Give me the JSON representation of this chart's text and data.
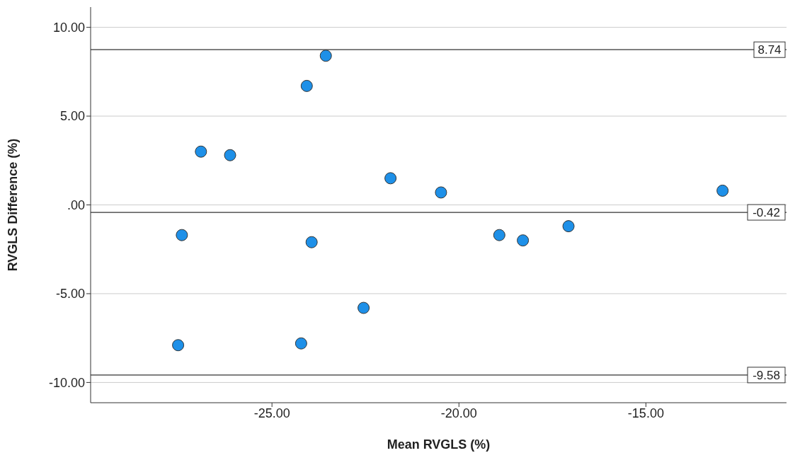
{
  "chart_data": {
    "type": "scatter",
    "xlabel": "Mean RVGLS (%)",
    "ylabel": "RVGLS Difference (%)",
    "x": [
      -27.51,
      -27.41,
      -26.9,
      -26.12,
      -24.07,
      -23.56,
      -23.94,
      -24.22,
      -22.55,
      -21.83,
      -20.48,
      -18.92,
      -18.29,
      -17.07,
      -12.95
    ],
    "series": [
      {
        "color": "#1e90e8",
        "values": [
          -7.9,
          -1.7,
          3.0,
          2.8,
          6.7,
          8.4,
          -2.1,
          -7.8,
          -5.8,
          1.5,
          0.7,
          -1.7,
          -2.0,
          -1.2,
          0.8
        ]
      }
    ],
    "xlim": [
      -29.85,
      -11.24
    ],
    "ylim": [
      -11.14,
      11.14
    ],
    "xticks": [
      {
        "value": -25,
        "label": "-25.00"
      },
      {
        "value": -20,
        "label": "-20.00"
      },
      {
        "value": -15,
        "label": "-15.00"
      }
    ],
    "yticks": [
      {
        "value": -10,
        "label": "-10.00"
      },
      {
        "value": -5,
        "label": "-5.00"
      },
      {
        "value": 0,
        "label": ".00"
      },
      {
        "value": 5,
        "label": "5.00"
      },
      {
        "value": 10,
        "label": "10.00"
      }
    ],
    "ref_lines": [
      {
        "axis": "y",
        "value": 8.74,
        "label": "8.74"
      },
      {
        "axis": "y",
        "value": -0.42,
        "label": "-0.42"
      },
      {
        "axis": "y",
        "value": -9.58,
        "label": "-9.58"
      }
    ],
    "grid": "y",
    "marker": "circle",
    "legend": false
  }
}
